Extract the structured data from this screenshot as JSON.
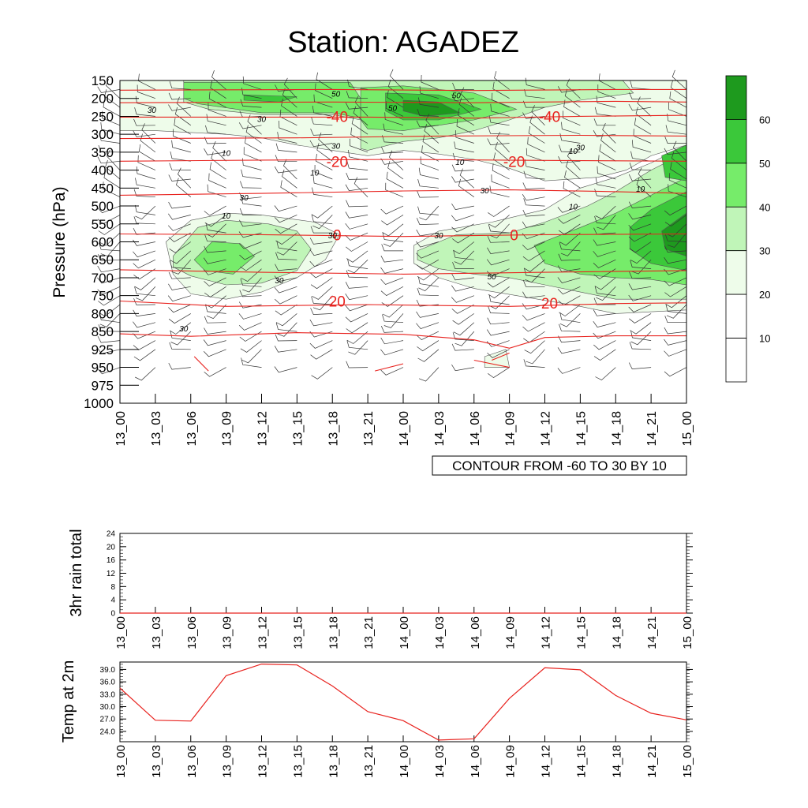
{
  "title": "Station: AGADEZ",
  "colors": {
    "temp_line": "#e8231f",
    "wind_barb": "#333333",
    "shade": [
      "#ffffff",
      "#ffffff",
      "#eefcea",
      "#c0f5b8",
      "#76ec6a",
      "#3bc83a",
      "#1e9a1e"
    ]
  },
  "chart_data": [
    {
      "type": "heatmap",
      "name": "time_pressure_section",
      "title": "Station: AGADEZ",
      "ylabel": "Pressure (hPa)",
      "xlabel": "",
      "x_ticks": [
        "13_00",
        "13_03",
        "13_06",
        "13_09",
        "13_12",
        "13_15",
        "13_18",
        "13_21",
        "14_00",
        "14_03",
        "14_06",
        "14_09",
        "14_12",
        "14_15",
        "14_18",
        "14_21",
        "15_00"
      ],
      "y_ticks": [
        150,
        200,
        250,
        300,
        350,
        400,
        450,
        500,
        550,
        600,
        650,
        700,
        750,
        800,
        850,
        925,
        950,
        975,
        1000
      ],
      "fill_variable": "wind speed",
      "fill_levels": [
        10,
        20,
        30,
        40,
        50,
        60
      ],
      "colorbar_labels": [
        "10",
        "20",
        "30",
        "40",
        "50",
        "60"
      ],
      "contour_variable": "temperature",
      "contour_info": "CONTOUR FROM -60 TO 30 BY 10",
      "temperature_contour_labels": [
        {
          "value": "-40",
          "x": "13_18",
          "p": 250
        },
        {
          "value": "-40",
          "x": "14_12",
          "p": 250
        },
        {
          "value": "-20",
          "x": "13_18",
          "p": 375
        },
        {
          "value": "-20",
          "x": "14_09",
          "p": 375
        },
        {
          "value": "0",
          "x": "13_18",
          "p": 580
        },
        {
          "value": "0",
          "x": "14_09",
          "p": 580
        },
        {
          "value": "20",
          "x": "13_18",
          "p": 765
        },
        {
          "value": "20",
          "x": "14_12",
          "p": 770
        }
      ],
      "wind_speed_contour_labels": [
        "50",
        "50",
        "50",
        "30",
        "30",
        "30",
        "10",
        "10",
        "10",
        "30",
        "30",
        "30",
        "10",
        "30",
        "30",
        "30",
        "50",
        "10",
        "10",
        "10",
        "30"
      ]
    },
    {
      "type": "line",
      "name": "rain_3hr",
      "ylabel": "3hr rain total",
      "x": [
        "13_00",
        "13_03",
        "13_06",
        "13_09",
        "13_12",
        "13_15",
        "13_18",
        "13_21",
        "14_00",
        "14_03",
        "14_06",
        "14_09",
        "14_12",
        "14_15",
        "14_18",
        "14_21",
        "15_00"
      ],
      "y_ticks": [
        0,
        4,
        8,
        12,
        16,
        20,
        24
      ],
      "ylim": [
        0,
        24
      ],
      "values": [
        0,
        0,
        0,
        0,
        0,
        0,
        0,
        0,
        0,
        0,
        0,
        0,
        0,
        0,
        0,
        0,
        0
      ]
    },
    {
      "type": "line",
      "name": "temp_2m",
      "ylabel": "Temp at 2m",
      "x": [
        "13_00",
        "13_03",
        "13_06",
        "13_09",
        "13_12",
        "13_15",
        "13_18",
        "13_21",
        "14_00",
        "14_03",
        "14_06",
        "14_09",
        "14_12",
        "14_15",
        "14_18",
        "14_21",
        "15_00"
      ],
      "y_ticks": [
        "24.0",
        "27.0",
        "30.0",
        "33.0",
        "36.0",
        "39.0"
      ],
      "ylim": [
        21.5,
        40.8
      ],
      "values": [
        34.5,
        26.7,
        26.5,
        37.5,
        40.3,
        40.1,
        35.0,
        28.8,
        26.6,
        21.9,
        22.2,
        32.0,
        39.4,
        38.9,
        32.7,
        28.4,
        26.8
      ]
    }
  ]
}
